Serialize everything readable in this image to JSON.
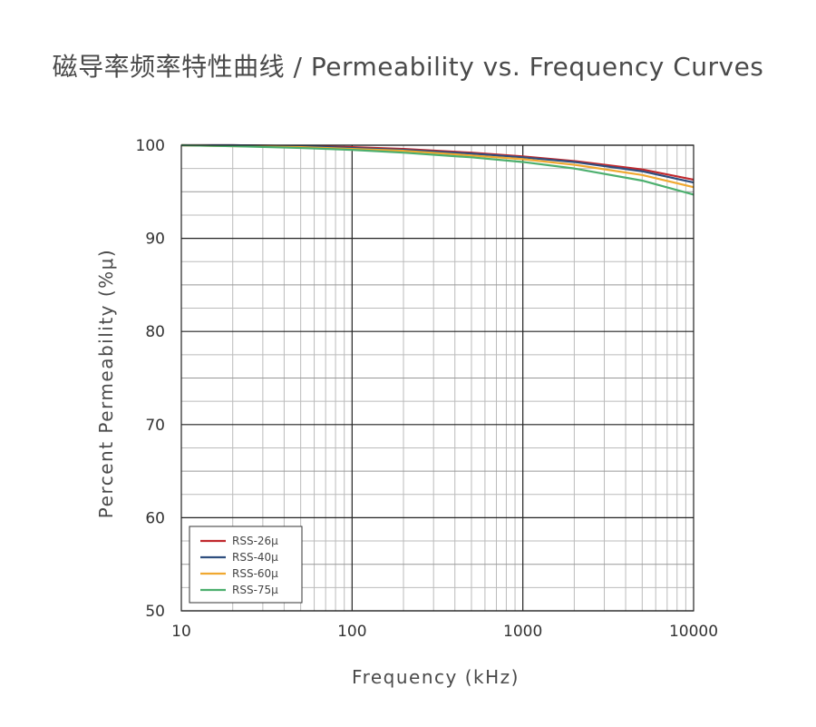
{
  "chart_data": {
    "type": "line",
    "title": "磁导率频率特性曲线 / Permeability vs. Frequency Curves",
    "xlabel": "Frequency (kHz)",
    "ylabel": "Percent Permeability (%μ)",
    "x_scale": "log",
    "xlim": [
      10,
      10000
    ],
    "ylim": [
      50,
      100
    ],
    "x_ticks": [
      "10",
      "100",
      "1000",
      "10000"
    ],
    "y_ticks": [
      "100",
      "90",
      "80",
      "70",
      "60",
      "50"
    ],
    "grid": true,
    "legend_position": "bottom-left",
    "x": [
      10,
      20,
      50,
      100,
      200,
      500,
      1000,
      2000,
      5000,
      10000
    ],
    "series": [
      {
        "name": "RSS-26μ",
        "color": "#c0282d",
        "values": [
          100.0,
          100.0,
          99.9,
          99.8,
          99.6,
          99.2,
          98.8,
          98.3,
          97.4,
          96.3
        ]
      },
      {
        "name": "RSS-40μ",
        "color": "#2f4f7f",
        "values": [
          100.0,
          100.0,
          99.9,
          99.7,
          99.5,
          99.1,
          98.7,
          98.2,
          97.2,
          96.0
        ]
      },
      {
        "name": "RSS-60μ",
        "color": "#f0a830",
        "values": [
          100.0,
          99.9,
          99.8,
          99.6,
          99.4,
          98.9,
          98.5,
          97.9,
          96.8,
          95.5
        ]
      },
      {
        "name": "RSS-75μ",
        "color": "#4caf6e",
        "values": [
          100.0,
          99.9,
          99.7,
          99.5,
          99.2,
          98.7,
          98.2,
          97.5,
          96.2,
          94.7
        ]
      }
    ]
  }
}
